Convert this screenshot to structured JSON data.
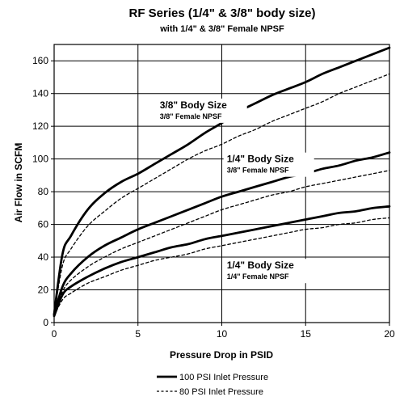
{
  "chart_data": {
    "type": "line",
    "title": "RF Series (1/4\" & 3/8\" body size)",
    "subtitle": "with 1/4\" & 3/8\" Female NPSF",
    "xlabel": "Pressure Drop in PSID",
    "ylabel": "Air Flow in SCFM",
    "xlim": [
      0,
      20
    ],
    "ylim": [
      0,
      170
    ],
    "xticks": [
      0,
      5,
      10,
      15,
      20
    ],
    "yticks": [
      0,
      20,
      40,
      60,
      80,
      100,
      120,
      140,
      160
    ],
    "grid": true,
    "legend_position": "bottom",
    "legend": [
      {
        "label": "100 PSI Inlet Pressure",
        "style": "solid"
      },
      {
        "label": "80 PSI Inlet Pressure",
        "style": "dashed"
      }
    ],
    "x": [
      0,
      0.5,
      1,
      2,
      3,
      4,
      5,
      6,
      7,
      8,
      9,
      10,
      11,
      12,
      13,
      14,
      15,
      16,
      17,
      18,
      19,
      20
    ],
    "series": [
      {
        "group": "3/8\" body / 3/8\" NPSF",
        "inlet": "100 PSI",
        "style": "solid",
        "values": [
          5,
          42,
          53,
          69,
          79,
          86,
          91,
          97,
          103,
          109,
          116,
          122,
          129,
          134,
          139,
          143,
          147,
          152,
          156,
          160,
          164,
          168
        ]
      },
      {
        "group": "3/8\" body / 3/8\" NPSF",
        "inlet": "80 PSI",
        "style": "dashed",
        "values": [
          5,
          35,
          45,
          59,
          68,
          76,
          82,
          88,
          94,
          100,
          105,
          109,
          114,
          118,
          123,
          127,
          131,
          135,
          140,
          144,
          148,
          152
        ]
      },
      {
        "group": "1/4\" body / 3/8\" NPSF",
        "inlet": "100 PSI",
        "style": "solid",
        "values": [
          5,
          22,
          30,
          40,
          47,
          52,
          57,
          61,
          65,
          69,
          73,
          77,
          80,
          83,
          86,
          89,
          91,
          94,
          96,
          99,
          101,
          104
        ]
      },
      {
        "group": "1/4\" body / 3/8\" NPSF",
        "inlet": "80 PSI",
        "style": "dashed",
        "values": [
          5,
          19,
          26,
          34,
          40,
          45,
          49,
          53,
          57,
          61,
          65,
          69,
          72,
          75,
          78,
          80,
          83,
          85,
          87,
          89,
          91,
          93
        ]
      },
      {
        "group": "1/4\" body / 1/4\" NPSF",
        "inlet": "100 PSI",
        "style": "solid",
        "values": [
          4,
          17,
          22,
          28,
          33,
          37,
          40,
          43,
          46,
          48,
          51,
          53,
          55,
          57,
          59,
          61,
          63,
          65,
          67,
          68,
          70,
          71
        ]
      },
      {
        "group": "1/4\" body / 1/4\" NPSF",
        "inlet": "80 PSI",
        "style": "dashed",
        "values": [
          4,
          14,
          18,
          24,
          28,
          32,
          35,
          38,
          40,
          42,
          45,
          47,
          49,
          51,
          53,
          55,
          57,
          58,
          60,
          61,
          63,
          64
        ]
      }
    ],
    "annotations": [
      {
        "line1": "3/8\" Body Size",
        "line2": "3/8\" Female NPSF",
        "at": [
          6.3,
          131
        ]
      },
      {
        "line1": "1/4\" Body Size",
        "line2": "3/8\" Female NPSF",
        "at": [
          10.3,
          98
        ]
      },
      {
        "line1": "1/4\" Body Size",
        "line2": "1/4\" Female NPSF",
        "at": [
          10.3,
          33
        ]
      }
    ]
  }
}
